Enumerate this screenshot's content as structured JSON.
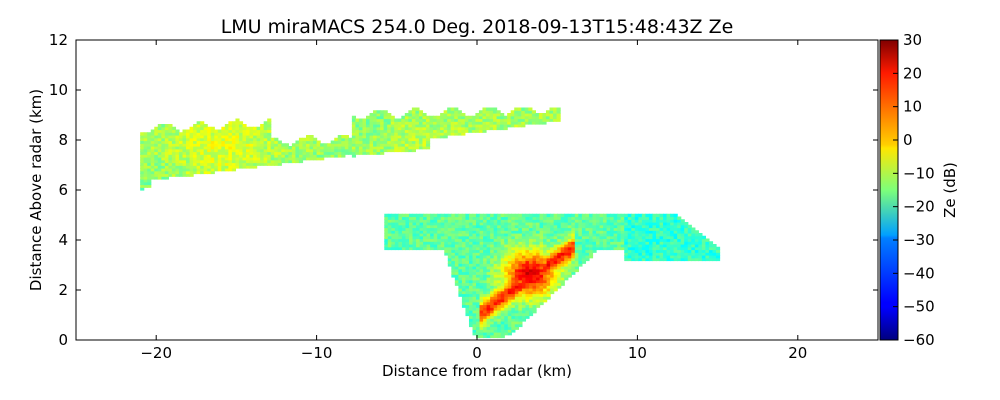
{
  "chart_data": {
    "type": "heatmap",
    "title": "LMU miraMACS 254.0 Deg. 2018-09-13T15:48:43Z  Ze",
    "xlabel": "Distance from radar (km)",
    "ylabel": "Distance Above radar  (km)",
    "xlim": [
      -25,
      25
    ],
    "ylim": [
      0,
      12
    ],
    "x_ticks": [
      -20,
      -10,
      0,
      10,
      20
    ],
    "x_tick_labels": [
      "−20",
      "−10",
      "0",
      "10",
      "20"
    ],
    "y_ticks": [
      0,
      2,
      4,
      6,
      8,
      10,
      12
    ],
    "y_tick_labels": [
      "0",
      "2",
      "4",
      "6",
      "8",
      "10",
      "12"
    ],
    "grid": false,
    "colorbar": {
      "label": "Ze (dB)",
      "range": [
        -60,
        30
      ],
      "ticks": [
        30,
        20,
        10,
        0,
        -10,
        -20,
        -30,
        -40,
        -50,
        -60
      ],
      "tick_labels": [
        "30",
        "20",
        "10",
        "0",
        "−10",
        "−20",
        "−30",
        "−40",
        "−50",
        "−60"
      ],
      "colormap": "jet"
    },
    "echo_regions": [
      {
        "name": "upper cloud layer",
        "x_range": [
          -21,
          5
        ],
        "y_range": [
          6.0,
          9.2
        ],
        "typical_ze_db": -12
      },
      {
        "name": "lower precipitating cloud",
        "x_range": [
          -6,
          15
        ],
        "y_range": [
          0.1,
          5.0
        ],
        "typical_ze_db": -18,
        "max_ze_db": 22
      }
    ]
  }
}
